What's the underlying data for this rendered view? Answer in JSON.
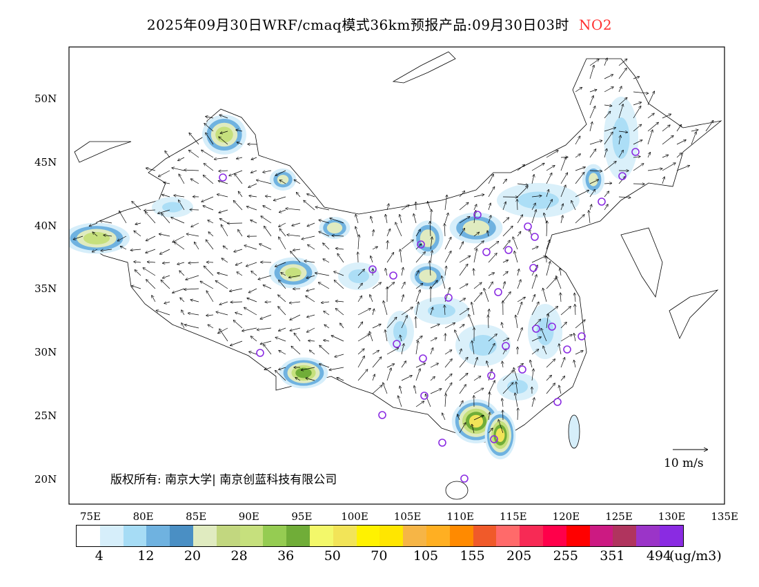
{
  "title": {
    "main": "2025年09月30日WRF/cmaq模式36km预报产品:09月30日03时",
    "species": "NO2"
  },
  "axes": {
    "lat_labels": [
      "50N",
      "45N",
      "40N",
      "35N",
      "30N",
      "25N",
      "20N"
    ],
    "lon_labels": [
      "75E",
      "80E",
      "85E",
      "90E",
      "95E",
      "100E",
      "105E",
      "110E",
      "115E",
      "120E",
      "125E",
      "130E",
      "135E"
    ]
  },
  "colorbar": {
    "colors": [
      "#ffffff",
      "#d6eefa",
      "#a6dcf5",
      "#6fb2e0",
      "#4a8fc4",
      "#e0ebc0",
      "#c2d77f",
      "#c6e07d",
      "#95cc52",
      "#70ad38",
      "#f3f86a",
      "#f2e458",
      "#fff200",
      "#ffe600",
      "#f6b546",
      "#ffaf22",
      "#ff8a00",
      "#f05a2a",
      "#ff6a6a",
      "#f72a55",
      "#ff004a",
      "#ff0000",
      "#cc1a82",
      "#b0345e",
      "#9b34c8",
      "#8a2be2"
    ],
    "labels": [
      "4",
      "12",
      "20",
      "28",
      "36",
      "50",
      "70",
      "105",
      "155",
      "205",
      "255",
      "351",
      "494"
    ],
    "unit": "(ug/m3)"
  },
  "copyright": "版权所有: 南京大学| 南京创蓝科技有限公司",
  "wind_scale": "10 m/s"
}
